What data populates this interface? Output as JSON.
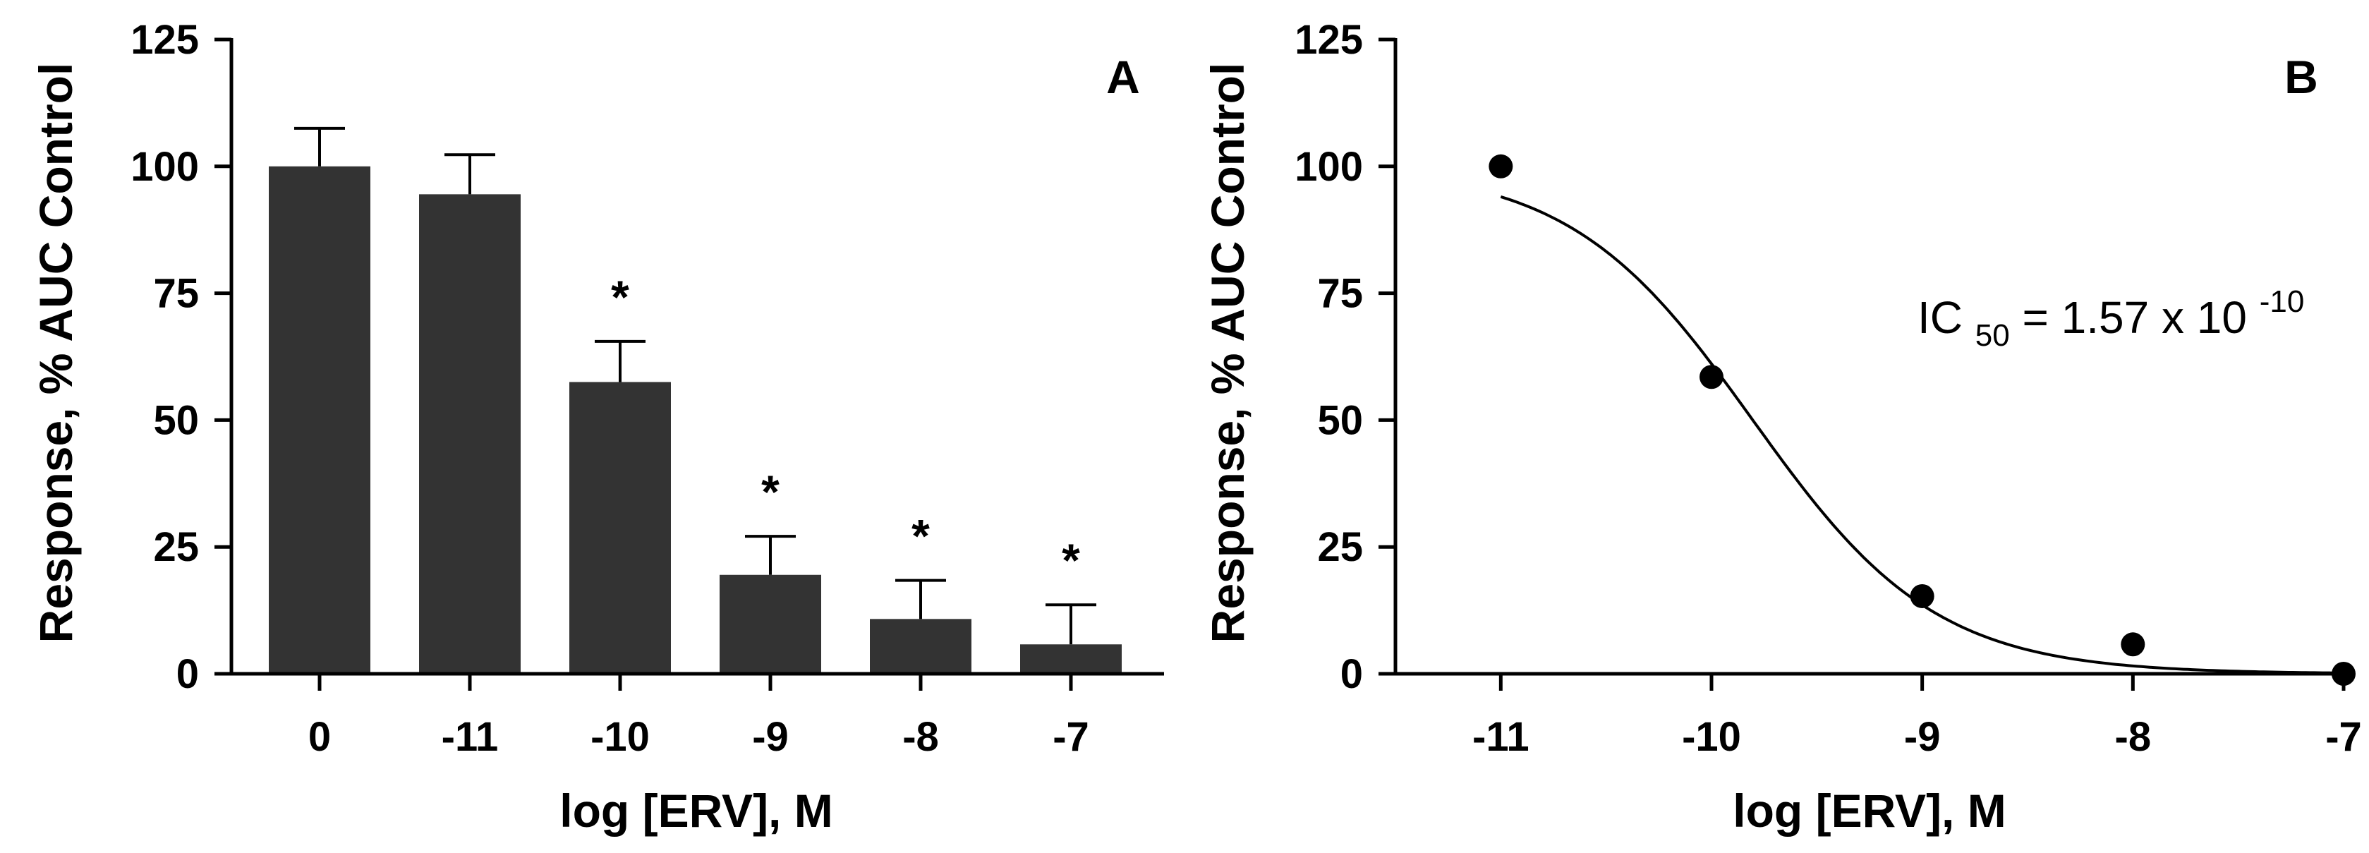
{
  "chart_data": [
    {
      "type": "bar",
      "panel_label": "A",
      "xlabel": "log [ERV], M",
      "ylabel": "Response, % AUC Control",
      "ylim": [
        0,
        125
      ],
      "yticks": [
        "0",
        "25",
        "50",
        "75",
        "100",
        "125"
      ],
      "categories": [
        "0",
        "-11",
        "-10",
        "-9",
        "-8",
        "-7"
      ],
      "values": [
        100,
        94.5,
        57.5,
        19.5,
        10.8,
        5.8
      ],
      "errors": [
        7.5,
        7.8,
        8.0,
        7.6,
        7.6,
        7.8
      ],
      "significance": [
        "",
        "",
        "*",
        "*",
        "*",
        "*"
      ],
      "bar_color": "#333333"
    },
    {
      "type": "scatter",
      "panel_label": "B",
      "xlabel": "log [ERV], M",
      "ylabel": "Response, % AUC Control",
      "ylim": [
        0,
        125
      ],
      "xlim": [
        -11.5,
        -7
      ],
      "yticks": [
        "0",
        "25",
        "50",
        "75",
        "100",
        "125"
      ],
      "xticks": [
        "-11",
        "-10",
        "-9",
        "-8",
        "-7"
      ],
      "x": [
        -11,
        -10,
        -9,
        -8,
        -7
      ],
      "y": [
        100,
        58.5,
        15.3,
        5.8,
        0
      ],
      "fit": {
        "model": "sigmoid",
        "top": 100,
        "bottom": 0,
        "log_ic50": -9.804,
        "hill_slope": -1.0
      },
      "annotation": {
        "main": "IC",
        "sub": "50",
        "mid": " = 1.57 x 10",
        "sup": "-10"
      }
    }
  ]
}
